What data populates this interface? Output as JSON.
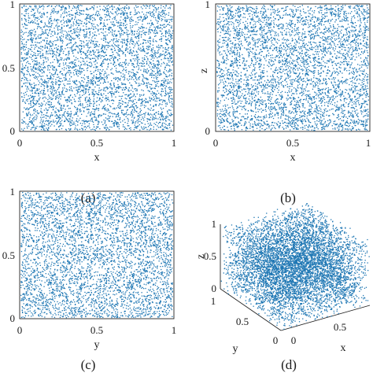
{
  "chart_data": [
    {
      "type": "scatter",
      "caption": "(a)",
      "xlabel": "x",
      "ylabel": "",
      "xlim": [
        0,
        1
      ],
      "ylim": [
        0,
        1
      ],
      "xticks": [
        "0",
        "0.5",
        "1"
      ],
      "yticks": [
        "0",
        "0.5",
        "1"
      ],
      "point_color": "#1f77b4",
      "distribution": "uniform random",
      "grid": false
    },
    {
      "type": "scatter",
      "caption": "(b)",
      "xlabel": "x",
      "ylabel": "z",
      "xlim": [
        0,
        1
      ],
      "ylim": [
        0,
        1
      ],
      "xticks": [
        "0",
        "0.5",
        "1"
      ],
      "yticks": [
        "0",
        "0.5",
        "1"
      ],
      "point_color": "#1f77b4",
      "distribution": "uniform random",
      "grid": false
    },
    {
      "type": "scatter",
      "caption": "(c)",
      "xlabel": "y",
      "ylabel": "",
      "xlim": [
        0,
        1
      ],
      "ylim": [
        0,
        1
      ],
      "xticks": [
        "0",
        "0.5",
        "1"
      ],
      "yticks": [
        "0",
        "0.5",
        "1"
      ],
      "point_color": "#1f77b4",
      "distribution": "uniform random",
      "grid": false
    },
    {
      "type": "scatter",
      "dimensions": 3,
      "caption": "(d)",
      "xlabel": "x",
      "ylabel": "y",
      "zlabel": "z",
      "xlim": [
        0,
        1
      ],
      "ylim": [
        0,
        1
      ],
      "zlim": [
        0,
        1
      ],
      "xticks": [
        "0",
        "0.5"
      ],
      "yticks": [
        "0",
        "0.5",
        "1"
      ],
      "zticks": [
        "0",
        "0.5",
        "1"
      ],
      "point_color": "#1f77b4",
      "distribution": "uniform random",
      "grid": false
    }
  ]
}
